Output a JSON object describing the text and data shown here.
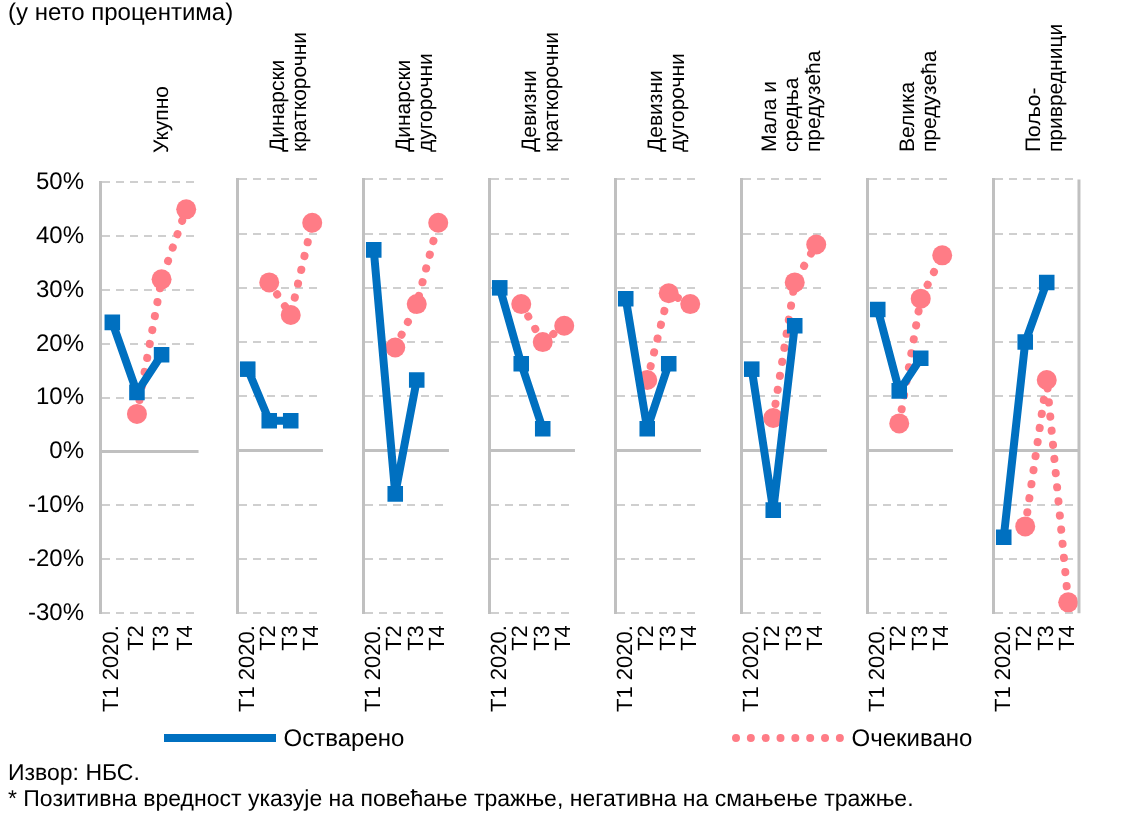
{
  "chart_data": [
    {
      "type": "line",
      "title": "Укупно",
      "ylabel": "(у нето процентима)",
      "categories": [
        "T1 2020.",
        "T2",
        "T3",
        "T4"
      ],
      "series": [
        {
          "name": "Остварено",
          "color": "#0070c0",
          "marker": "square",
          "line_style": "solid",
          "values": [
            24,
            11,
            18,
            null
          ]
        },
        {
          "name": "Очекивано",
          "color": "#ff7c86",
          "marker": "circle",
          "line_style": "dotted",
          "values": [
            null,
            7,
            32,
            45
          ]
        }
      ],
      "ylim": [
        -30,
        50
      ],
      "yticks": [
        {
          "value": -30,
          "label": "-30%"
        },
        {
          "value": -20,
          "label": "-20%"
        },
        {
          "value": -10,
          "label": "-10%"
        },
        {
          "value": 0,
          "label": "0%"
        },
        {
          "value": 10,
          "label": "10%"
        },
        {
          "value": 20,
          "label": "20%"
        },
        {
          "value": 30,
          "label": "30%"
        },
        {
          "value": 40,
          "label": "40%"
        },
        {
          "value": 50,
          "label": "50%"
        }
      ],
      "grid": "y",
      "legend": "bottom",
      "annotations": [
        "Извор: НБС.",
        "* Позитивна вредност указује на повећање тражње, негативна на смањење тражње."
      ]
    },
    {
      "type": "line",
      "title": "Динарски краткорочни",
      "categories": [
        "T1 2020.",
        "T2",
        "T3",
        "T4"
      ],
      "series": [
        {
          "color": "#0070c0",
          "marker": "square",
          "line_style": "solid",
          "values": [
            15,
            5.5,
            5.5,
            null
          ]
        },
        {
          "color": "#ff7c86",
          "marker": "circle",
          "line_style": "dotted",
          "values": [
            null,
            31,
            25,
            42
          ]
        }
      ],
      "ylim": [
        -30,
        50
      ],
      "yticks": [
        -30,
        -20,
        -10,
        0,
        10,
        20,
        30,
        40,
        50
      ],
      "grid": "y",
      "tick_labels": "x"
    },
    {
      "type": "line",
      "title": "Динарски дугорочни",
      "categories": [
        "T1 2020.",
        "T2",
        "T3",
        "T4"
      ],
      "series": [
        {
          "color": "#0070c0",
          "marker": "square",
          "line_style": "solid",
          "values": [
            37,
            -8,
            13,
            null
          ]
        },
        {
          "color": "#ff7c86",
          "marker": "circle",
          "line_style": "dotted",
          "values": [
            null,
            19,
            27,
            42
          ]
        }
      ],
      "ylim": [
        -30,
        50
      ],
      "yticks": [
        -30,
        -20,
        -10,
        0,
        10,
        20,
        30,
        40,
        50
      ],
      "grid": "y",
      "tick_labels": "x"
    },
    {
      "type": "line",
      "title": "Девизни краткорочни",
      "categories": [
        "T1 2020.",
        "T2",
        "T3",
        "T4"
      ],
      "series": [
        {
          "color": "#0070c0",
          "marker": "square",
          "line_style": "solid",
          "values": [
            30,
            16,
            4,
            null
          ]
        },
        {
          "color": "#ff7c86",
          "marker": "circle",
          "line_style": "dotted",
          "values": [
            null,
            27,
            20,
            23
          ]
        }
      ],
      "ylim": [
        -30,
        50
      ],
      "yticks": [
        -30,
        -20,
        -10,
        0,
        10,
        20,
        30,
        40,
        50
      ],
      "grid": "y",
      "tick_labels": "x"
    },
    {
      "type": "line",
      "title": "Девизни дугорочни",
      "categories": [
        "T1 2020.",
        "T2",
        "T3",
        "T4"
      ],
      "series": [
        {
          "color": "#0070c0",
          "marker": "square",
          "line_style": "solid",
          "values": [
            28,
            4,
            16,
            null
          ]
        },
        {
          "color": "#ff7c86",
          "marker": "circle",
          "line_style": "dotted",
          "values": [
            null,
            13,
            29,
            27
          ]
        }
      ],
      "ylim": [
        -30,
        50
      ],
      "yticks": [
        -30,
        -20,
        -10,
        0,
        10,
        20,
        30,
        40,
        50
      ],
      "grid": "y",
      "tick_labels": "x"
    },
    {
      "type": "line",
      "title": "Мала и средња предузећа",
      "categories": [
        "T1 2020.",
        "T2",
        "T3",
        "T4"
      ],
      "series": [
        {
          "color": "#0070c0",
          "marker": "square",
          "line_style": "solid",
          "values": [
            15,
            -11,
            23,
            null
          ]
        },
        {
          "color": "#ff7c86",
          "marker": "circle",
          "line_style": "dotted",
          "values": [
            null,
            6,
            31,
            38
          ]
        }
      ],
      "ylim": [
        -30,
        50
      ],
      "yticks": [
        -30,
        -20,
        -10,
        0,
        10,
        20,
        30,
        40,
        50
      ],
      "grid": "y",
      "tick_labels": "x"
    },
    {
      "type": "line",
      "title": "Велика предузећа",
      "categories": [
        "T1 2020.",
        "T2",
        "T3",
        "T4"
      ],
      "series": [
        {
          "color": "#0070c0",
          "marker": "square",
          "line_style": "solid",
          "values": [
            26,
            11,
            17,
            null
          ]
        },
        {
          "color": "#ff7c86",
          "marker": "circle",
          "line_style": "dotted",
          "values": [
            null,
            5,
            28,
            36
          ]
        }
      ],
      "ylim": [
        -30,
        50
      ],
      "yticks": [
        -30,
        -20,
        -10,
        0,
        10,
        20,
        30,
        40,
        50
      ],
      "grid": "y",
      "tick_labels": "x"
    },
    {
      "type": "line",
      "title": "Пољо-привредници",
      "categories": [
        "T1 2020.",
        "T2",
        "T3",
        "T4"
      ],
      "series": [
        {
          "color": "#0070c0",
          "marker": "square",
          "line_style": "solid",
          "values": [
            -16,
            20,
            31,
            null
          ]
        },
        {
          "color": "#ff7c86",
          "marker": "circle",
          "line_style": "dotted",
          "values": [
            null,
            -14,
            13,
            -28
          ]
        }
      ],
      "ylim": [
        -30,
        50
      ],
      "yticks": [
        -30,
        -20,
        -10,
        0,
        10,
        20,
        30,
        40,
        50
      ],
      "grid": "y",
      "tick_labels": "x"
    }
  ]
}
